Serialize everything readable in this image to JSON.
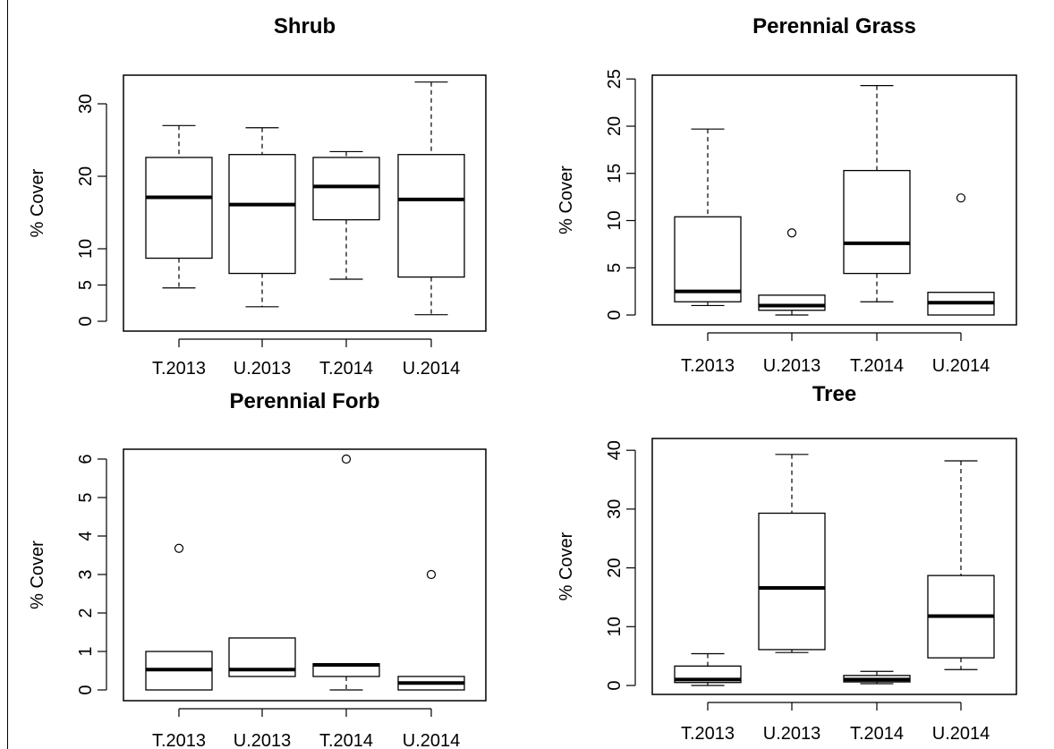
{
  "chart_data": [
    {
      "type": "boxplot",
      "title": "Shrub",
      "ylabel": "% Cover",
      "categories": [
        "T.2013",
        "U.2013",
        "T.2014",
        "U.2014"
      ],
      "yticks": [
        0,
        5,
        10,
        20,
        30
      ],
      "ylim": [
        0,
        34
      ],
      "boxes": [
        {
          "min": 4.6,
          "q1": 8.7,
          "median": 17.1,
          "q3": 22.6,
          "max": 27.0,
          "outliers": []
        },
        {
          "min": 2.0,
          "q1": 6.6,
          "median": 16.1,
          "q3": 23.0,
          "max": 26.7,
          "outliers": []
        },
        {
          "min": 5.8,
          "q1": 14.0,
          "median": 18.6,
          "q3": 22.6,
          "max": 23.4,
          "outliers": []
        },
        {
          "min": 0.9,
          "q1": 6.1,
          "median": 16.8,
          "q3": 23.0,
          "max": 33.0,
          "outliers": []
        }
      ]
    },
    {
      "type": "boxplot",
      "title": "Perennial Grass",
      "ylabel": "% Cover",
      "categories": [
        "T.2013",
        "U.2013",
        "T.2014",
        "U.2014"
      ],
      "yticks": [
        0,
        5,
        10,
        15,
        20,
        25
      ],
      "ylim": [
        0,
        25
      ],
      "boxes": [
        {
          "min": 1.0,
          "q1": 1.4,
          "median": 2.5,
          "q3": 10.4,
          "max": 19.7,
          "outliers": []
        },
        {
          "min": 0.0,
          "q1": 0.5,
          "median": 1.0,
          "q3": 2.1,
          "max": 2.1,
          "outliers": [
            8.7
          ]
        },
        {
          "min": 1.4,
          "q1": 4.4,
          "median": 7.6,
          "q3": 15.3,
          "max": 24.3,
          "outliers": []
        },
        {
          "min": 0.0,
          "q1": 0.0,
          "median": 1.3,
          "q3": 2.4,
          "max": 2.4,
          "outliers": [
            12.4
          ]
        }
      ]
    },
    {
      "type": "boxplot",
      "title": "Perennial Forb",
      "ylabel": "% Cover",
      "categories": [
        "T.2013",
        "U.2013",
        "T.2014",
        "U.2014"
      ],
      "yticks": [
        0,
        1,
        2,
        3,
        4,
        5,
        6
      ],
      "ylim": [
        0,
        6
      ],
      "boxes": [
        {
          "min": 0.0,
          "q1": 0.0,
          "median": 0.53,
          "q3": 1.0,
          "max": 1.0,
          "outliers": [
            3.68
          ]
        },
        {
          "min": 0.35,
          "q1": 0.35,
          "median": 0.53,
          "q3": 1.35,
          "max": 1.35,
          "outliers": []
        },
        {
          "min": 0.0,
          "q1": 0.35,
          "median": 0.65,
          "q3": 0.68,
          "max": 0.68,
          "outliers": [
            6.0
          ]
        },
        {
          "min": 0.0,
          "q1": 0.0,
          "median": 0.18,
          "q3": 0.35,
          "max": 0.35,
          "outliers": [
            3.0
          ]
        }
      ]
    },
    {
      "type": "boxplot",
      "title": "Tree",
      "ylabel": "% Cover",
      "categories": [
        "T.2013",
        "U.2013",
        "T.2014",
        "U.2014"
      ],
      "yticks": [
        0,
        10,
        20,
        30,
        40
      ],
      "ylim": [
        0,
        40
      ],
      "boxes": [
        {
          "min": 0.0,
          "q1": 0.5,
          "median": 1.0,
          "q3": 3.3,
          "max": 5.4,
          "outliers": []
        },
        {
          "min": 5.6,
          "q1": 6.1,
          "median": 16.6,
          "q3": 29.3,
          "max": 39.3,
          "outliers": []
        },
        {
          "min": 0.3,
          "q1": 0.6,
          "median": 1.0,
          "q3": 1.7,
          "max": 2.4,
          "outliers": []
        },
        {
          "min": 2.7,
          "q1": 4.7,
          "median": 11.8,
          "q3": 18.7,
          "max": 38.2,
          "outliers": []
        }
      ]
    }
  ]
}
